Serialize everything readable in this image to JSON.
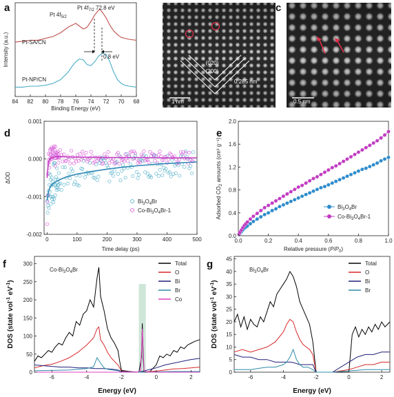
{
  "panel_letters": {
    "a": "a",
    "b": "b",
    "c": "c",
    "d": "d",
    "e": "e",
    "f": "f",
    "g": "g"
  },
  "micrographs": {
    "b": {
      "plane1": "(020)",
      "plane2": "(200)",
      "spacing": "0.285 nm",
      "scale": "1 nm"
    },
    "c": {
      "scale": "0.5 nm"
    }
  },
  "chart_data": [
    {
      "id": "a",
      "type": "line",
      "xlabel": "Binding Energy (eV)",
      "ylabel": "Intensity (a.u.)",
      "xlim": [
        84,
        68
      ],
      "xticks": [
        84,
        82,
        80,
        78,
        76,
        74,
        72,
        70,
        68
      ],
      "annotations": {
        "peak1": "Pt 4f",
        "peak1_sub": "5/2",
        "peak2": "Pt 4f",
        "peak2_sub": "7/2",
        "peak2_value": "72.8 eV",
        "shift": "0.8 eV"
      },
      "series": [
        {
          "name": "Pt-SA/CN",
          "color": "#c0504d",
          "x": [
            84,
            83,
            82,
            81,
            80,
            79,
            78,
            77,
            76.5,
            76,
            75.5,
            75,
            74.5,
            74,
            73.5,
            73,
            72.8,
            72.5,
            72,
            71.5,
            71,
            70.5,
            70,
            69,
            68
          ],
          "y": [
            0.58,
            0.59,
            0.6,
            0.6,
            0.62,
            0.64,
            0.68,
            0.74,
            0.76,
            0.78,
            0.75,
            0.72,
            0.74,
            0.8,
            0.87,
            0.92,
            0.93,
            0.9,
            0.84,
            0.76,
            0.7,
            0.66,
            0.63,
            0.61,
            0.6
          ]
        },
        {
          "name": "Pt-NP/CN",
          "color": "#4bacc6",
          "x": [
            84,
            83,
            82,
            81,
            80,
            79,
            78,
            77,
            76.5,
            76,
            75.5,
            75,
            74.5,
            74,
            73.5,
            73,
            72.5,
            72,
            71.5,
            71,
            70.5,
            70,
            69.5,
            69,
            68
          ],
          "y": [
            0.1,
            0.1,
            0.11,
            0.11,
            0.12,
            0.14,
            0.18,
            0.26,
            0.32,
            0.37,
            0.4,
            0.39,
            0.34,
            0.33,
            0.37,
            0.43,
            0.46,
            0.45,
            0.37,
            0.26,
            0.18,
            0.14,
            0.12,
            0.11,
            0.1
          ]
        }
      ]
    },
    {
      "id": "d",
      "type": "scatter",
      "xlabel": "Time delay (ps)",
      "ylabel": "ΔOD",
      "xlim": [
        -10,
        500
      ],
      "ylim": [
        -0.002,
        0.001
      ],
      "xticks": [
        0,
        100,
        200,
        300,
        400,
        500
      ],
      "yticks": [
        0.001,
        0.0,
        -0.001,
        -0.002
      ],
      "ytick_labels": [
        "0.001",
        "0.000",
        "-0.001",
        "-0.002"
      ],
      "series": [
        {
          "name": "Bi3O4Br",
          "name_main": "Bi",
          "name_sub1": "3",
          "name_mid": "O",
          "name_sub2": "4",
          "name_end": "Br",
          "color": "#4bacc6",
          "fit_color": "#2e86b5",
          "fit_x": [
            0,
            5,
            10,
            20,
            30,
            50,
            75,
            100,
            150,
            200,
            250,
            300,
            400,
            500
          ],
          "fit_y": [
            -0.0011,
            -0.00085,
            -0.00075,
            -0.00065,
            -0.0006,
            -0.00052,
            -0.00045,
            -0.0004,
            -0.00033,
            -0.00027,
            -0.00022,
            -0.00018,
            -0.00012,
            -8e-05
          ]
        },
        {
          "name": "Co-Bi3O4Br-1",
          "name_main": "Co-Bi",
          "name_sub1": "3",
          "name_mid": "O",
          "name_sub2": "4",
          "name_end": "Br-1",
          "color": "#d44fd4",
          "fit_color": "#c23bc2",
          "fit_x": [
            0,
            3,
            6,
            10,
            20,
            30,
            50,
            100,
            200,
            300,
            400,
            500
          ],
          "fit_y": [
            -0.0005,
            -0.0002,
            -5e-05,
            2e-05,
            5e-05,
            6e-05,
            6e-05,
            5e-05,
            4e-05,
            4e-05,
            3e-05,
            3e-05
          ]
        }
      ],
      "legend": "bottom-right"
    },
    {
      "id": "e",
      "type": "line",
      "xlabel_main": "Relative pressure (",
      "xlabel_p": "P",
      "xlabel_slash": "/",
      "xlabel_p0": "P",
      "xlabel_p0_sub": "0",
      "xlabel_end": ")",
      "ylabel_main": "Adsorbed CO",
      "ylabel_sub": "2",
      "ylabel_end": " amounts (cm³ g⁻¹)",
      "xlim": [
        0,
        1.0
      ],
      "ylim": [
        0,
        2.0
      ],
      "xticks": [
        0.0,
        0.2,
        0.4,
        0.6,
        0.8,
        1.0
      ],
      "yticks": [
        0.0,
        0.4,
        0.8,
        1.2,
        1.6,
        2.0
      ],
      "series": [
        {
          "name": "Bi3O4Br",
          "name_main": "Bi",
          "name_sub1": "3",
          "name_mid": "O",
          "name_sub2": "4",
          "name_end": "Br",
          "color": "#2e8ccc",
          "x": [
            0.005,
            0.01,
            0.02,
            0.03,
            0.04,
            0.05,
            0.06,
            0.08,
            0.1,
            0.125,
            0.15,
            0.175,
            0.2,
            0.225,
            0.25,
            0.275,
            0.3,
            0.325,
            0.35,
            0.375,
            0.4,
            0.425,
            0.45,
            0.475,
            0.5,
            0.525,
            0.55,
            0.575,
            0.6,
            0.625,
            0.65,
            0.675,
            0.7,
            0.725,
            0.75,
            0.775,
            0.8,
            0.825,
            0.85,
            0.875,
            0.9,
            0.925,
            0.95,
            0.975,
            1.0
          ],
          "y": [
            0.02,
            0.04,
            0.07,
            0.1,
            0.13,
            0.15,
            0.17,
            0.21,
            0.25,
            0.29,
            0.33,
            0.37,
            0.4,
            0.44,
            0.47,
            0.51,
            0.54,
            0.57,
            0.6,
            0.63,
            0.66,
            0.69,
            0.72,
            0.75,
            0.78,
            0.81,
            0.84,
            0.86,
            0.89,
            0.92,
            0.95,
            0.98,
            1.01,
            1.04,
            1.07,
            1.1,
            1.13,
            1.16,
            1.18,
            1.21,
            1.24,
            1.27,
            1.31,
            1.34,
            1.37
          ]
        },
        {
          "name": "Co-Bi3O4Br-1",
          "name_main": "Co-Bi",
          "name_sub1": "3",
          "name_mid": "O",
          "name_sub2": "4",
          "name_end": "Br-1",
          "color": "#c23bc2",
          "x": [
            0.005,
            0.01,
            0.02,
            0.03,
            0.04,
            0.05,
            0.06,
            0.08,
            0.1,
            0.125,
            0.15,
            0.175,
            0.2,
            0.225,
            0.25,
            0.275,
            0.3,
            0.325,
            0.35,
            0.375,
            0.4,
            0.425,
            0.45,
            0.475,
            0.5,
            0.525,
            0.55,
            0.575,
            0.6,
            0.625,
            0.65,
            0.675,
            0.7,
            0.725,
            0.75,
            0.775,
            0.8,
            0.825,
            0.85,
            0.875,
            0.9,
            0.925,
            0.95,
            0.975,
            1.0
          ],
          "y": [
            0.03,
            0.06,
            0.1,
            0.14,
            0.18,
            0.21,
            0.24,
            0.29,
            0.34,
            0.39,
            0.44,
            0.49,
            0.53,
            0.57,
            0.61,
            0.65,
            0.69,
            0.73,
            0.77,
            0.81,
            0.85,
            0.88,
            0.92,
            0.96,
            1.0,
            1.03,
            1.07,
            1.11,
            1.15,
            1.19,
            1.22,
            1.26,
            1.3,
            1.34,
            1.38,
            1.42,
            1.46,
            1.5,
            1.54,
            1.58,
            1.62,
            1.66,
            1.71,
            1.76,
            1.82
          ]
        }
      ],
      "legend": "bottom-right"
    },
    {
      "id": "f",
      "type": "line",
      "xlabel": "Energy (eV)",
      "ylabel_main": "DOS (state vol",
      "ylabel_sup1": "-1",
      "ylabel_mid": " eV",
      "ylabel_sup2": "-1",
      "ylabel_end": ")",
      "xlim": [
        -7,
        2.5
      ],
      "ylim": [
        0,
        320
      ],
      "xticks": [
        -6,
        -4,
        -2,
        0,
        2
      ],
      "yticks": [
        0,
        50,
        100,
        150,
        200,
        250,
        300
      ],
      "inset_main": "Co-Bi",
      "inset_sub1": "3",
      "inset_mid": "O",
      "inset_sub2": "4",
      "inset_end": "Br",
      "highlight_x": [
        -1.0,
        -0.6
      ],
      "series": [
        {
          "name": "Total",
          "color": "#000000",
          "x": [
            -7,
            -6.8,
            -6.6,
            -6.4,
            -6.2,
            -6,
            -5.8,
            -5.6,
            -5.4,
            -5.2,
            -5,
            -4.8,
            -4.6,
            -4.4,
            -4.2,
            -4,
            -3.8,
            -3.6,
            -3.4,
            -3.3,
            -3.2,
            -3.1,
            -3,
            -2.8,
            -2.6,
            -2.4,
            -2.2,
            -2.1,
            -2,
            -1.2,
            -1,
            -0.85,
            -0.8,
            -0.75,
            -0.7,
            -0.6,
            -0.4,
            0,
            0.2,
            0.4,
            0.6,
            0.8,
            1,
            1.2,
            1.4,
            1.6,
            1.8,
            2,
            2.2,
            2.5
          ],
          "y": [
            30,
            45,
            40,
            50,
            60,
            55,
            70,
            80,
            75,
            95,
            110,
            100,
            140,
            130,
            160,
            170,
            200,
            180,
            260,
            290,
            210,
            190,
            170,
            120,
            95,
            80,
            60,
            30,
            5,
            0,
            0,
            40,
            135,
            40,
            0,
            0,
            0,
            20,
            45,
            40,
            50,
            45,
            60,
            55,
            70,
            65,
            75,
            80,
            85,
            90
          ]
        },
        {
          "name": "O",
          "color": "#d62728",
          "x": [
            -7,
            -6.5,
            -6,
            -5.5,
            -5,
            -4.5,
            -4,
            -3.8,
            -3.6,
            -3.4,
            -3.3,
            -3.2,
            -3,
            -2.8,
            -2.6,
            -2.4,
            -2.2,
            -2,
            -1,
            0,
            0.5,
            1,
            1.5,
            2,
            2.5
          ],
          "y": [
            12,
            18,
            22,
            30,
            40,
            55,
            75,
            85,
            95,
            120,
            125,
            90,
            75,
            55,
            40,
            30,
            20,
            3,
            0,
            3,
            6,
            9,
            10,
            12,
            14
          ]
        },
        {
          "name": "Bi",
          "color": "#1f1f7a",
          "x": [
            -7,
            -6.5,
            -6,
            -5.5,
            -5,
            -4.5,
            -4,
            -3.5,
            -3,
            -2.5,
            -2.2,
            -2,
            -1,
            0,
            0.5,
            1,
            1.5,
            2,
            2.5
          ],
          "y": [
            20,
            18,
            16,
            14,
            14,
            12,
            12,
            10,
            10,
            8,
            6,
            2,
            0,
            12,
            20,
            25,
            30,
            35,
            38
          ]
        },
        {
          "name": "Br",
          "color": "#2e8ca8",
          "x": [
            -7,
            -6,
            -5,
            -4.5,
            -4,
            -3.6,
            -3.4,
            -3.2,
            -3,
            -2.8,
            -2.5,
            -2.2,
            -2,
            -1,
            0,
            1,
            2,
            2.5
          ],
          "y": [
            4,
            5,
            6,
            8,
            10,
            15,
            40,
            25,
            12,
            8,
            6,
            4,
            1,
            0,
            1,
            2,
            2,
            2
          ]
        },
        {
          "name": "Co",
          "color": "#e040c0",
          "x": [
            -7,
            -3,
            -2,
            -1.1,
            -0.9,
            -0.85,
            -0.8,
            -0.75,
            -0.7,
            -0.5,
            0,
            1,
            2,
            2.5
          ],
          "y": [
            0,
            0,
            0,
            0,
            5,
            60,
            120,
            60,
            5,
            0,
            0,
            0,
            0,
            0
          ]
        }
      ],
      "legend": "top-right"
    },
    {
      "id": "g",
      "type": "line",
      "xlabel": "Energy (eV)",
      "ylabel_main": "DOS (state vol",
      "ylabel_sup1": "-1",
      "ylabel_mid": " eV",
      "ylabel_sup2": "-1",
      "ylabel_end": ")",
      "xlim": [
        -7,
        2.5
      ],
      "ylim": [
        0,
        46
      ],
      "xticks": [
        -6,
        -4,
        -2,
        0,
        2
      ],
      "yticks": [
        0,
        5,
        10,
        15,
        20,
        25,
        30,
        35,
        40,
        45
      ],
      "inset_main": "Bi",
      "inset_sub1": "3",
      "inset_mid": "O",
      "inset_sub2": "4",
      "inset_end": "Br",
      "series": [
        {
          "name": "Total",
          "color": "#000000",
          "x": [
            -7,
            -6.8,
            -6.6,
            -6.4,
            -6.2,
            -6,
            -5.8,
            -5.6,
            -5.4,
            -5.2,
            -5,
            -4.8,
            -4.6,
            -4.4,
            -4.2,
            -4,
            -3.8,
            -3.6,
            -3.4,
            -3.2,
            -3,
            -2.8,
            -2.6,
            -2.4,
            -2.2,
            -2,
            -1,
            0,
            0.2,
            0.4,
            0.6,
            0.8,
            1,
            1.2,
            1.4,
            1.6,
            1.8,
            2,
            2.2,
            2.5
          ],
          "y": [
            20,
            23,
            18,
            22,
            17,
            21,
            19,
            18,
            22,
            20,
            24,
            28,
            26,
            31,
            33,
            35,
            37,
            40,
            38,
            34,
            28,
            25,
            22,
            19,
            12,
            0,
            0,
            0,
            15,
            18,
            14,
            17,
            15,
            18,
            16,
            19,
            17,
            20,
            18,
            20
          ]
        },
        {
          "name": "O",
          "color": "#d62728",
          "x": [
            -7,
            -6.5,
            -6,
            -5.5,
            -5,
            -4.5,
            -4,
            -3.8,
            -3.6,
            -3.4,
            -3.2,
            -3,
            -2.8,
            -2.6,
            -2.4,
            -2.2,
            -2,
            -1,
            0,
            0.5,
            1,
            1.5,
            2,
            2.5
          ],
          "y": [
            8,
            9,
            8,
            9,
            10,
            12,
            16,
            19,
            21,
            20,
            16,
            13,
            11,
            10,
            9,
            7,
            0,
            0,
            1,
            2,
            3,
            3,
            4,
            4
          ]
        },
        {
          "name": "Bi",
          "color": "#1f1f7a",
          "x": [
            -7,
            -6.5,
            -6,
            -5.5,
            -5,
            -4.5,
            -4,
            -3.5,
            -3,
            -2.5,
            -2.2,
            -2,
            -1,
            0,
            0.5,
            1,
            1.5,
            2,
            2.5
          ],
          "y": [
            7,
            6,
            6,
            5,
            5,
            4,
            4,
            4,
            3,
            3,
            3,
            0,
            0,
            4,
            6,
            7,
            7,
            8,
            8
          ]
        },
        {
          "name": "Br",
          "color": "#2e8ca8",
          "x": [
            -7,
            -6,
            -5,
            -4.5,
            -4,
            -3.8,
            -3.6,
            -3.4,
            -3.2,
            -3,
            -2.8,
            -2.5,
            -2.2,
            -2,
            -1,
            0,
            1,
            2,
            2.5
          ],
          "y": [
            1,
            1,
            2,
            2,
            3,
            4,
            6,
            9,
            5,
            3,
            2,
            2,
            1,
            0,
            0,
            0.5,
            1,
            1,
            1
          ]
        }
      ],
      "legend": "top-right"
    }
  ]
}
